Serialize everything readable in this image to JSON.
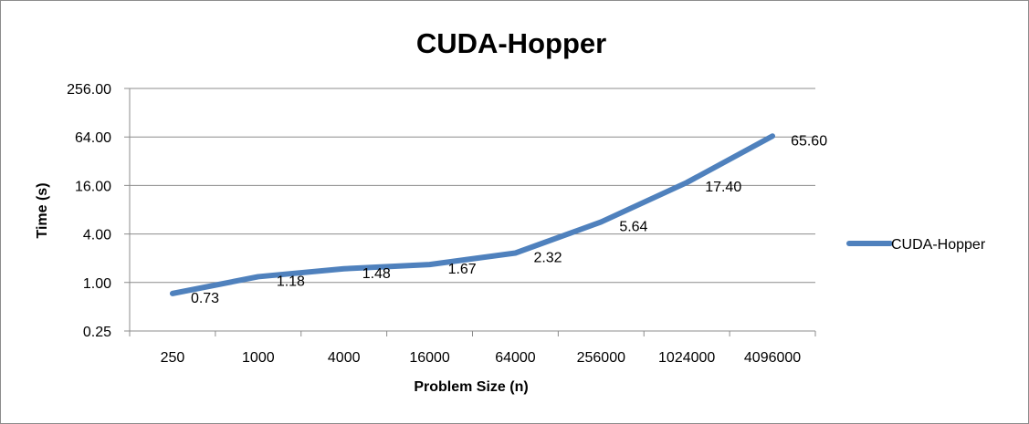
{
  "chart_data": {
    "type": "line",
    "title": "CUDA-Hopper",
    "xlabel": "Problem Size (n)",
    "ylabel": "Time (s)",
    "yscale": "log2",
    "ylim": [
      0.25,
      256
    ],
    "y_ticks": [
      "0.25",
      "1.00",
      "4.00",
      "16.00",
      "64.00",
      "256.00"
    ],
    "categories": [
      "250",
      "1000",
      "4000",
      "16000",
      "64000",
      "256000",
      "1024000",
      "4096000"
    ],
    "series": [
      {
        "name": "CUDA-Hopper",
        "color": "#4f81bd",
        "values": [
          0.73,
          1.18,
          1.48,
          1.67,
          2.32,
          5.64,
          17.4,
          65.6
        ],
        "labels": [
          "0.73",
          "1.18",
          "1.48",
          "1.67",
          "2.32",
          "5.64",
          "17.40",
          "65.60"
        ]
      }
    ],
    "grid": true,
    "legend": "right"
  }
}
